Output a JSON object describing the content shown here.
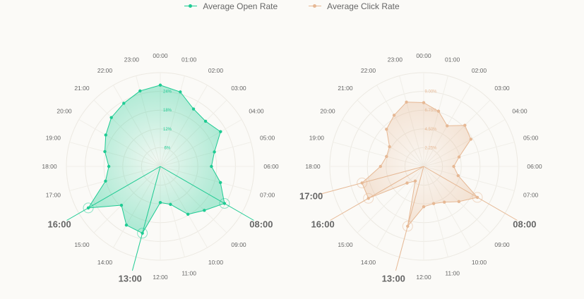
{
  "chart_data": [
    {
      "type": "radar",
      "series": [
        {
          "name": "Average Open Rate",
          "values": [
            23.4,
            22.2,
            19.1,
            18.4,
            20.0,
            16.1,
            14.7,
            17.9,
            21.3,
            17.9,
            15.9,
            11.3,
            10.4,
            19.9,
            19.5,
            15.8,
            23.9,
            16.3,
            14.8,
            16.5,
            18.1,
            19.9,
            21.0,
            22.5
          ],
          "highlight_hours": [
            "08:00",
            "13:00",
            "16:00"
          ]
        }
      ],
      "color": "#1ecb93",
      "ring_labels": [
        "6%",
        "12%",
        "18%",
        "24%"
      ],
      "max": 27
    },
    {
      "type": "radar",
      "series": [
        {
          "name": "Average Click Rate",
          "values": [
            6.8,
            6.1,
            5.0,
            6.2,
            5.8,
            3.9,
            3.2,
            3.8,
            6.6,
            5.3,
            4.4,
            4.1,
            4.3,
            6.6,
            1.8,
            2.5,
            6.8,
            6.8,
            4.6,
            4.1,
            4.2,
            5.6,
            6.3,
            7.1
          ],
          "highlight_hours": [
            "08:00",
            "13:00",
            "16:00",
            "17:00"
          ]
        }
      ],
      "color": "#e6b894",
      "ring_labels": [
        "2.25%",
        "4.50%",
        "6.75%",
        "9.00%"
      ],
      "max": 10
    }
  ],
  "hours": [
    "00:00",
    "01:00",
    "02:00",
    "03:00",
    "04:00",
    "05:00",
    "06:00",
    "07:00",
    "08:00",
    "09:00",
    "10:00",
    "11:00",
    "12:00",
    "13:00",
    "14:00",
    "15:00",
    "16:00",
    "17:00",
    "18:00",
    "19:00",
    "20:00",
    "21:00",
    "22:00",
    "23:00"
  ],
  "colors": {
    "open": "#1ecb93",
    "click": "#e6b894",
    "label": "#666666"
  }
}
